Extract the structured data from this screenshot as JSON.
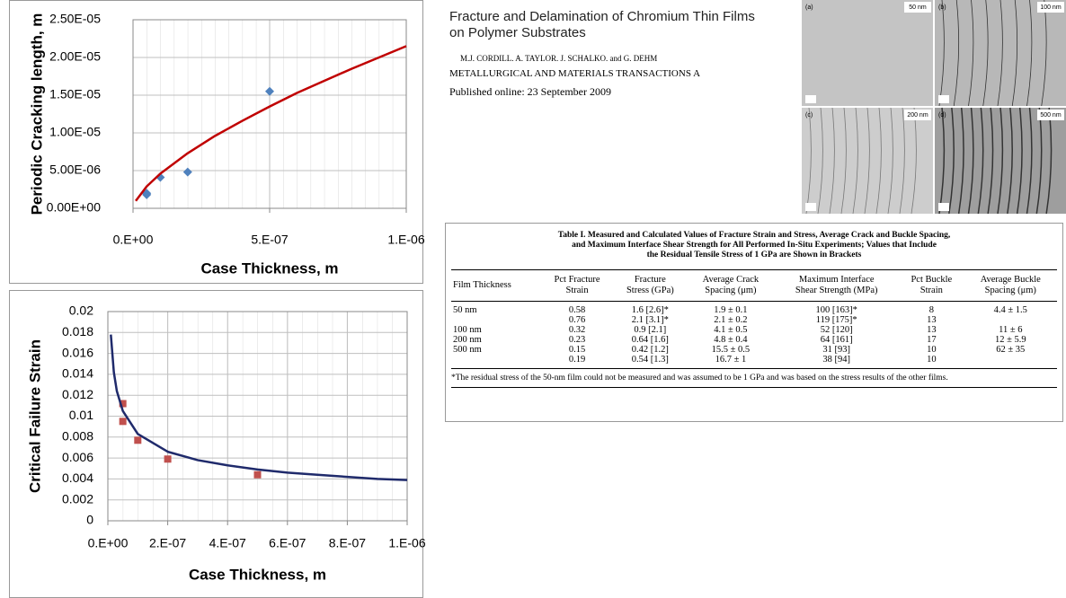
{
  "chart_data": [
    {
      "type": "scatter",
      "ylabel": "Periodic Cracking length, m",
      "xlabel": "Case Thickness, m",
      "xlim": [
        0,
        1e-06
      ],
      "xticks": [
        {
          "value": 0,
          "label": "0.E+00"
        },
        {
          "value": 5e-07,
          "label": "5.E-07"
        },
        {
          "value": 1e-06,
          "label": "1.E-06"
        }
      ],
      "ylim": [
        0,
        2.5e-05
      ],
      "yticks": [
        {
          "value": 0,
          "label": "0.00E+00"
        },
        {
          "value": 5e-06,
          "label": "5.00E-06"
        },
        {
          "value": 1e-05,
          "label": "1.00E-05"
        },
        {
          "value": 1.5e-05,
          "label": "1.50E-05"
        },
        {
          "value": 2e-05,
          "label": "2.00E-05"
        },
        {
          "value": 2.5e-05,
          "label": "2.50E-05"
        }
      ],
      "grid": true,
      "series": [
        {
          "type": "scatter",
          "marker": "diamond",
          "color": "#4f81bd",
          "x": [
            5e-08,
            5e-08,
            1e-07,
            2e-07,
            5e-07
          ],
          "values": [
            2e-06,
            1.8e-06,
            4.1e-06,
            4.8e-06,
            1.55e-05
          ]
        },
        {
          "type": "line",
          "color": "#c00000",
          "x": [
            1e-08,
            5e-08,
            1e-07,
            2e-07,
            3e-07,
            4e-07,
            5e-07,
            6e-07,
            7e-07,
            8e-07,
            9e-07,
            1e-06
          ],
          "values": [
            9.8e-07,
            2.9e-06,
            4.6e-06,
            7.3e-06,
            9.6e-06,
            1.16e-05,
            1.35e-05,
            1.53e-05,
            1.69e-05,
            1.85e-05,
            2e-05,
            2.15e-05
          ]
        }
      ]
    },
    {
      "type": "scatter",
      "ylabel": "Critical Failure Strain",
      "xlabel": "Case Thickness, m",
      "xlim": [
        0,
        1e-06
      ],
      "xticks": [
        {
          "value": 0,
          "label": "0.E+00"
        },
        {
          "value": 2e-07,
          "label": "2.E-07"
        },
        {
          "value": 4e-07,
          "label": "4.E-07"
        },
        {
          "value": 6e-07,
          "label": "6.E-07"
        },
        {
          "value": 8e-07,
          "label": "8.E-07"
        },
        {
          "value": 1e-06,
          "label": "1.E-06"
        }
      ],
      "ylim": [
        0,
        0.02
      ],
      "yticks": [
        0,
        0.002,
        0.004,
        0.006,
        0.008,
        0.01,
        0.012,
        0.014,
        0.016,
        0.018,
        0.02
      ],
      "grid": true,
      "series": [
        {
          "type": "scatter",
          "marker": "square",
          "color": "#c0504d",
          "x": [
            5e-08,
            5e-08,
            1e-07,
            2e-07,
            5e-07
          ],
          "values": [
            0.0112,
            0.0095,
            0.0077,
            0.0059,
            0.0044
          ]
        },
        {
          "type": "line",
          "color": "#1f2a6b",
          "x": [
            1e-08,
            2e-08,
            3e-08,
            5e-08,
            1e-07,
            2e-07,
            3e-07,
            4e-07,
            5e-07,
            6e-07,
            7e-07,
            8e-07,
            9e-07,
            1e-06
          ],
          "values": [
            0.0178,
            0.0142,
            0.0124,
            0.0105,
            0.0083,
            0.0066,
            0.0058,
            0.0053,
            0.0049,
            0.0046,
            0.0044,
            0.0042,
            0.004,
            0.0039
          ]
        }
      ]
    }
  ],
  "paper": {
    "title": [
      "Fracture and Delamination of Chromium Thin Films",
      "on Polymer Substrates"
    ],
    "authors": "M.J. CORDILL. A. TAYLOR. J. SCHALKO. and G. DEHM",
    "journal": "METALLURGICAL AND MATERIALS TRANSACTIONS A",
    "published": "Published online: 23 September 2009"
  },
  "micrographs": [
    {
      "panel": "(a)",
      "label": "50 nm"
    },
    {
      "panel": "(b)",
      "label": "100 nm"
    },
    {
      "panel": "(c)",
      "label": "200 nm"
    },
    {
      "panel": "(d)",
      "label": "500 nm"
    }
  ],
  "table": {
    "title": [
      "Table I.   Measured and Calculated Values of Fracture Strain and Stress, Average Crack and Buckle Spacing,",
      "and Maximum Interface Shear Strength for All Performed In-Situ Experiments; Values that Include",
      "the Residual Tensile Stress of 1 GPa are Shown in Brackets"
    ],
    "headers": [
      [
        "Film Thickness"
      ],
      [
        "Pct Fracture",
        "Strain"
      ],
      [
        "Fracture",
        "Stress (GPa)"
      ],
      [
        "Average Crack",
        "Spacing (μm)"
      ],
      [
        "Maximum Interface",
        "Shear Strength (MPa)"
      ],
      [
        "Pct Buckle",
        "Strain"
      ],
      [
        "Average Buckle",
        "Spacing (μm)"
      ]
    ],
    "rows": [
      [
        "50 nm",
        "0.58",
        "1.6 [2.6]*",
        "1.9 ± 0.1",
        "100 [163]*",
        "8",
        "4.4 ± 1.5"
      ],
      [
        null,
        "0.76",
        "2.1 [3.1]*",
        "2.1 ± 0.2",
        "119 [175]*",
        "13",
        null
      ],
      [
        "100 nm",
        "0.32",
        "0.9 [2.1]",
        "4.1 ± 0.5",
        "52 [120]",
        "13",
        "11 ± 6"
      ],
      [
        "200 nm",
        "0.23",
        "0.64 [1.6]",
        "4.8 ± 0.4",
        "64 [161]",
        "17",
        "12 ± 5.9"
      ],
      [
        "500 nm",
        "0.15",
        "0.42 [1.2]",
        "15.5 ± 0.5",
        "31 [93]",
        "10",
        "62 ± 35"
      ],
      [
        null,
        "0.19",
        "0.54 [1.3]",
        "16.7 ± 1",
        "38 [94]",
        "10",
        null
      ]
    ],
    "footnote": "*The residual stress of the 50-nm film could not be measured and was assumed to be 1 GPa and was based on the stress results of the other films."
  }
}
